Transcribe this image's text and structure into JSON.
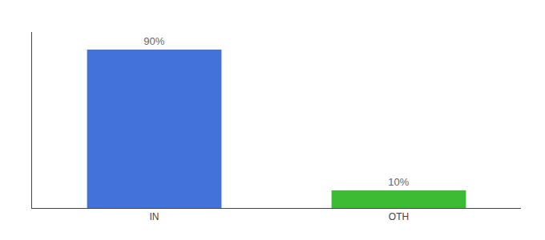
{
  "chart_data": {
    "type": "bar",
    "categories": [
      "IN",
      "OTH"
    ],
    "values": [
      90,
      10
    ],
    "value_labels": [
      "90%",
      "10%"
    ],
    "colors": [
      "#4472db",
      "#3dbb35"
    ],
    "ylim": [
      0,
      100
    ],
    "yticks": [],
    "data_labels": true,
    "tick_labels": "x",
    "grid": false
  }
}
